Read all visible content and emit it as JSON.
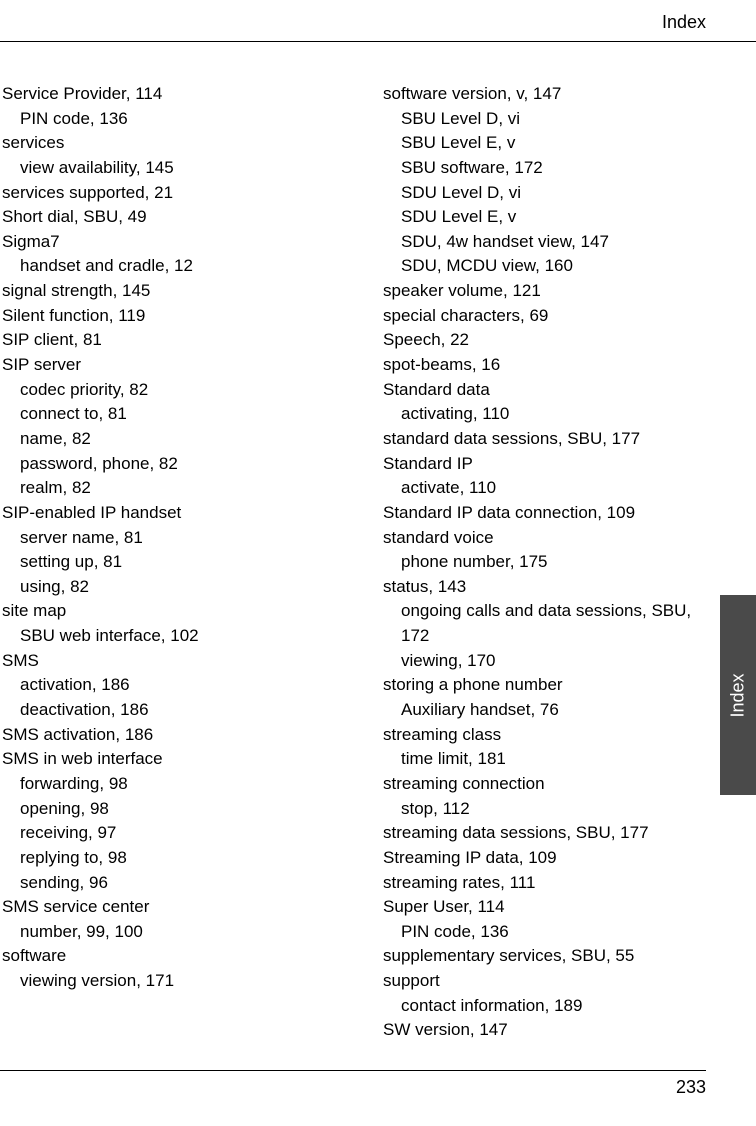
{
  "header": {
    "title": "Index"
  },
  "sideTab": {
    "label": "Index"
  },
  "footer": {
    "pageNumber": "233"
  },
  "columnLeft": [
    {
      "text": "Service Provider, 114",
      "indent": 0
    },
    {
      "text": "PIN code, 136",
      "indent": 1
    },
    {
      "text": "services",
      "indent": 0
    },
    {
      "text": "view availability, 145",
      "indent": 1
    },
    {
      "text": "services supported, 21",
      "indent": 0
    },
    {
      "text": "Short dial, SBU, 49",
      "indent": 0
    },
    {
      "text": "Sigma7",
      "indent": 0
    },
    {
      "text": "handset and cradle, 12",
      "indent": 1
    },
    {
      "text": "signal strength, 145",
      "indent": 0
    },
    {
      "text": "Silent function, 119",
      "indent": 0
    },
    {
      "text": "SIP client, 81",
      "indent": 0
    },
    {
      "text": "SIP server",
      "indent": 0
    },
    {
      "text": "codec priority, 82",
      "indent": 1
    },
    {
      "text": "connect to, 81",
      "indent": 1
    },
    {
      "text": "name, 82",
      "indent": 1
    },
    {
      "text": "password, phone, 82",
      "indent": 1
    },
    {
      "text": "realm, 82",
      "indent": 1
    },
    {
      "text": "SIP-enabled IP handset",
      "indent": 0
    },
    {
      "text": "server name, 81",
      "indent": 1
    },
    {
      "text": "setting up, 81",
      "indent": 1
    },
    {
      "text": "using, 82",
      "indent": 1
    },
    {
      "text": "site map",
      "indent": 0
    },
    {
      "text": "SBU web interface, 102",
      "indent": 1
    },
    {
      "text": "SMS",
      "indent": 0
    },
    {
      "text": "activation, 186",
      "indent": 1
    },
    {
      "text": "deactivation, 186",
      "indent": 1
    },
    {
      "text": "SMS activation, 186",
      "indent": 0
    },
    {
      "text": "SMS in web interface",
      "indent": 0
    },
    {
      "text": "forwarding, 98",
      "indent": 1
    },
    {
      "text": "opening, 98",
      "indent": 1
    },
    {
      "text": "receiving, 97",
      "indent": 1
    },
    {
      "text": "replying to, 98",
      "indent": 1
    },
    {
      "text": "sending, 96",
      "indent": 1
    },
    {
      "text": "SMS service center",
      "indent": 0
    },
    {
      "text": "number, 99, 100",
      "indent": 1
    },
    {
      "text": "software",
      "indent": 0
    },
    {
      "text": "viewing version, 171",
      "indent": 1
    }
  ],
  "columnRight": [
    {
      "text": "software version, v, 147",
      "indent": 0
    },
    {
      "text": "SBU Level D, vi",
      "indent": 1
    },
    {
      "text": "SBU Level E, v",
      "indent": 1
    },
    {
      "text": "SBU software, 172",
      "indent": 1
    },
    {
      "text": "SDU Level D, vi",
      "indent": 1
    },
    {
      "text": "SDU Level E, v",
      "indent": 1
    },
    {
      "text": "SDU, 4w handset view, 147",
      "indent": 1
    },
    {
      "text": "SDU, MCDU view, 160",
      "indent": 1
    },
    {
      "text": "speaker volume, 121",
      "indent": 0
    },
    {
      "text": "special characters, 69",
      "indent": 0
    },
    {
      "text": "Speech, 22",
      "indent": 0
    },
    {
      "text": "spot-beams, 16",
      "indent": 0
    },
    {
      "text": "Standard data",
      "indent": 0
    },
    {
      "text": "activating, 110",
      "indent": 1
    },
    {
      "text": "standard data sessions, SBU, 177",
      "indent": 0
    },
    {
      "text": "Standard IP",
      "indent": 0
    },
    {
      "text": "activate, 110",
      "indent": 1
    },
    {
      "text": "Standard IP data connection, 109",
      "indent": 0
    },
    {
      "text": "standard voice",
      "indent": 0
    },
    {
      "text": "phone number, 175",
      "indent": 1
    },
    {
      "text": "status, 143",
      "indent": 0
    },
    {
      "text": "ongoing calls and data sessions, SBU,",
      "indent": 1
    },
    {
      "text": "172",
      "indent": 1
    },
    {
      "text": "viewing, 170",
      "indent": 1
    },
    {
      "text": "storing a phone number",
      "indent": 0
    },
    {
      "text": "Auxiliary handset, 76",
      "indent": 1
    },
    {
      "text": "streaming class",
      "indent": 0
    },
    {
      "text": "time limit, 181",
      "indent": 1
    },
    {
      "text": "streaming connection",
      "indent": 0
    },
    {
      "text": "stop, 112",
      "indent": 1
    },
    {
      "text": "streaming data sessions, SBU, 177",
      "indent": 0
    },
    {
      "text": "Streaming IP data, 109",
      "indent": 0
    },
    {
      "text": "streaming rates, 111",
      "indent": 0
    },
    {
      "text": "Super User, 114",
      "indent": 0
    },
    {
      "text": "PIN code, 136",
      "indent": 1
    },
    {
      "text": "supplementary services, SBU, 55",
      "indent": 0
    },
    {
      "text": "support",
      "indent": 0
    },
    {
      "text": "contact information, 189",
      "indent": 1
    },
    {
      "text": "SW version, 147",
      "indent": 0
    }
  ]
}
